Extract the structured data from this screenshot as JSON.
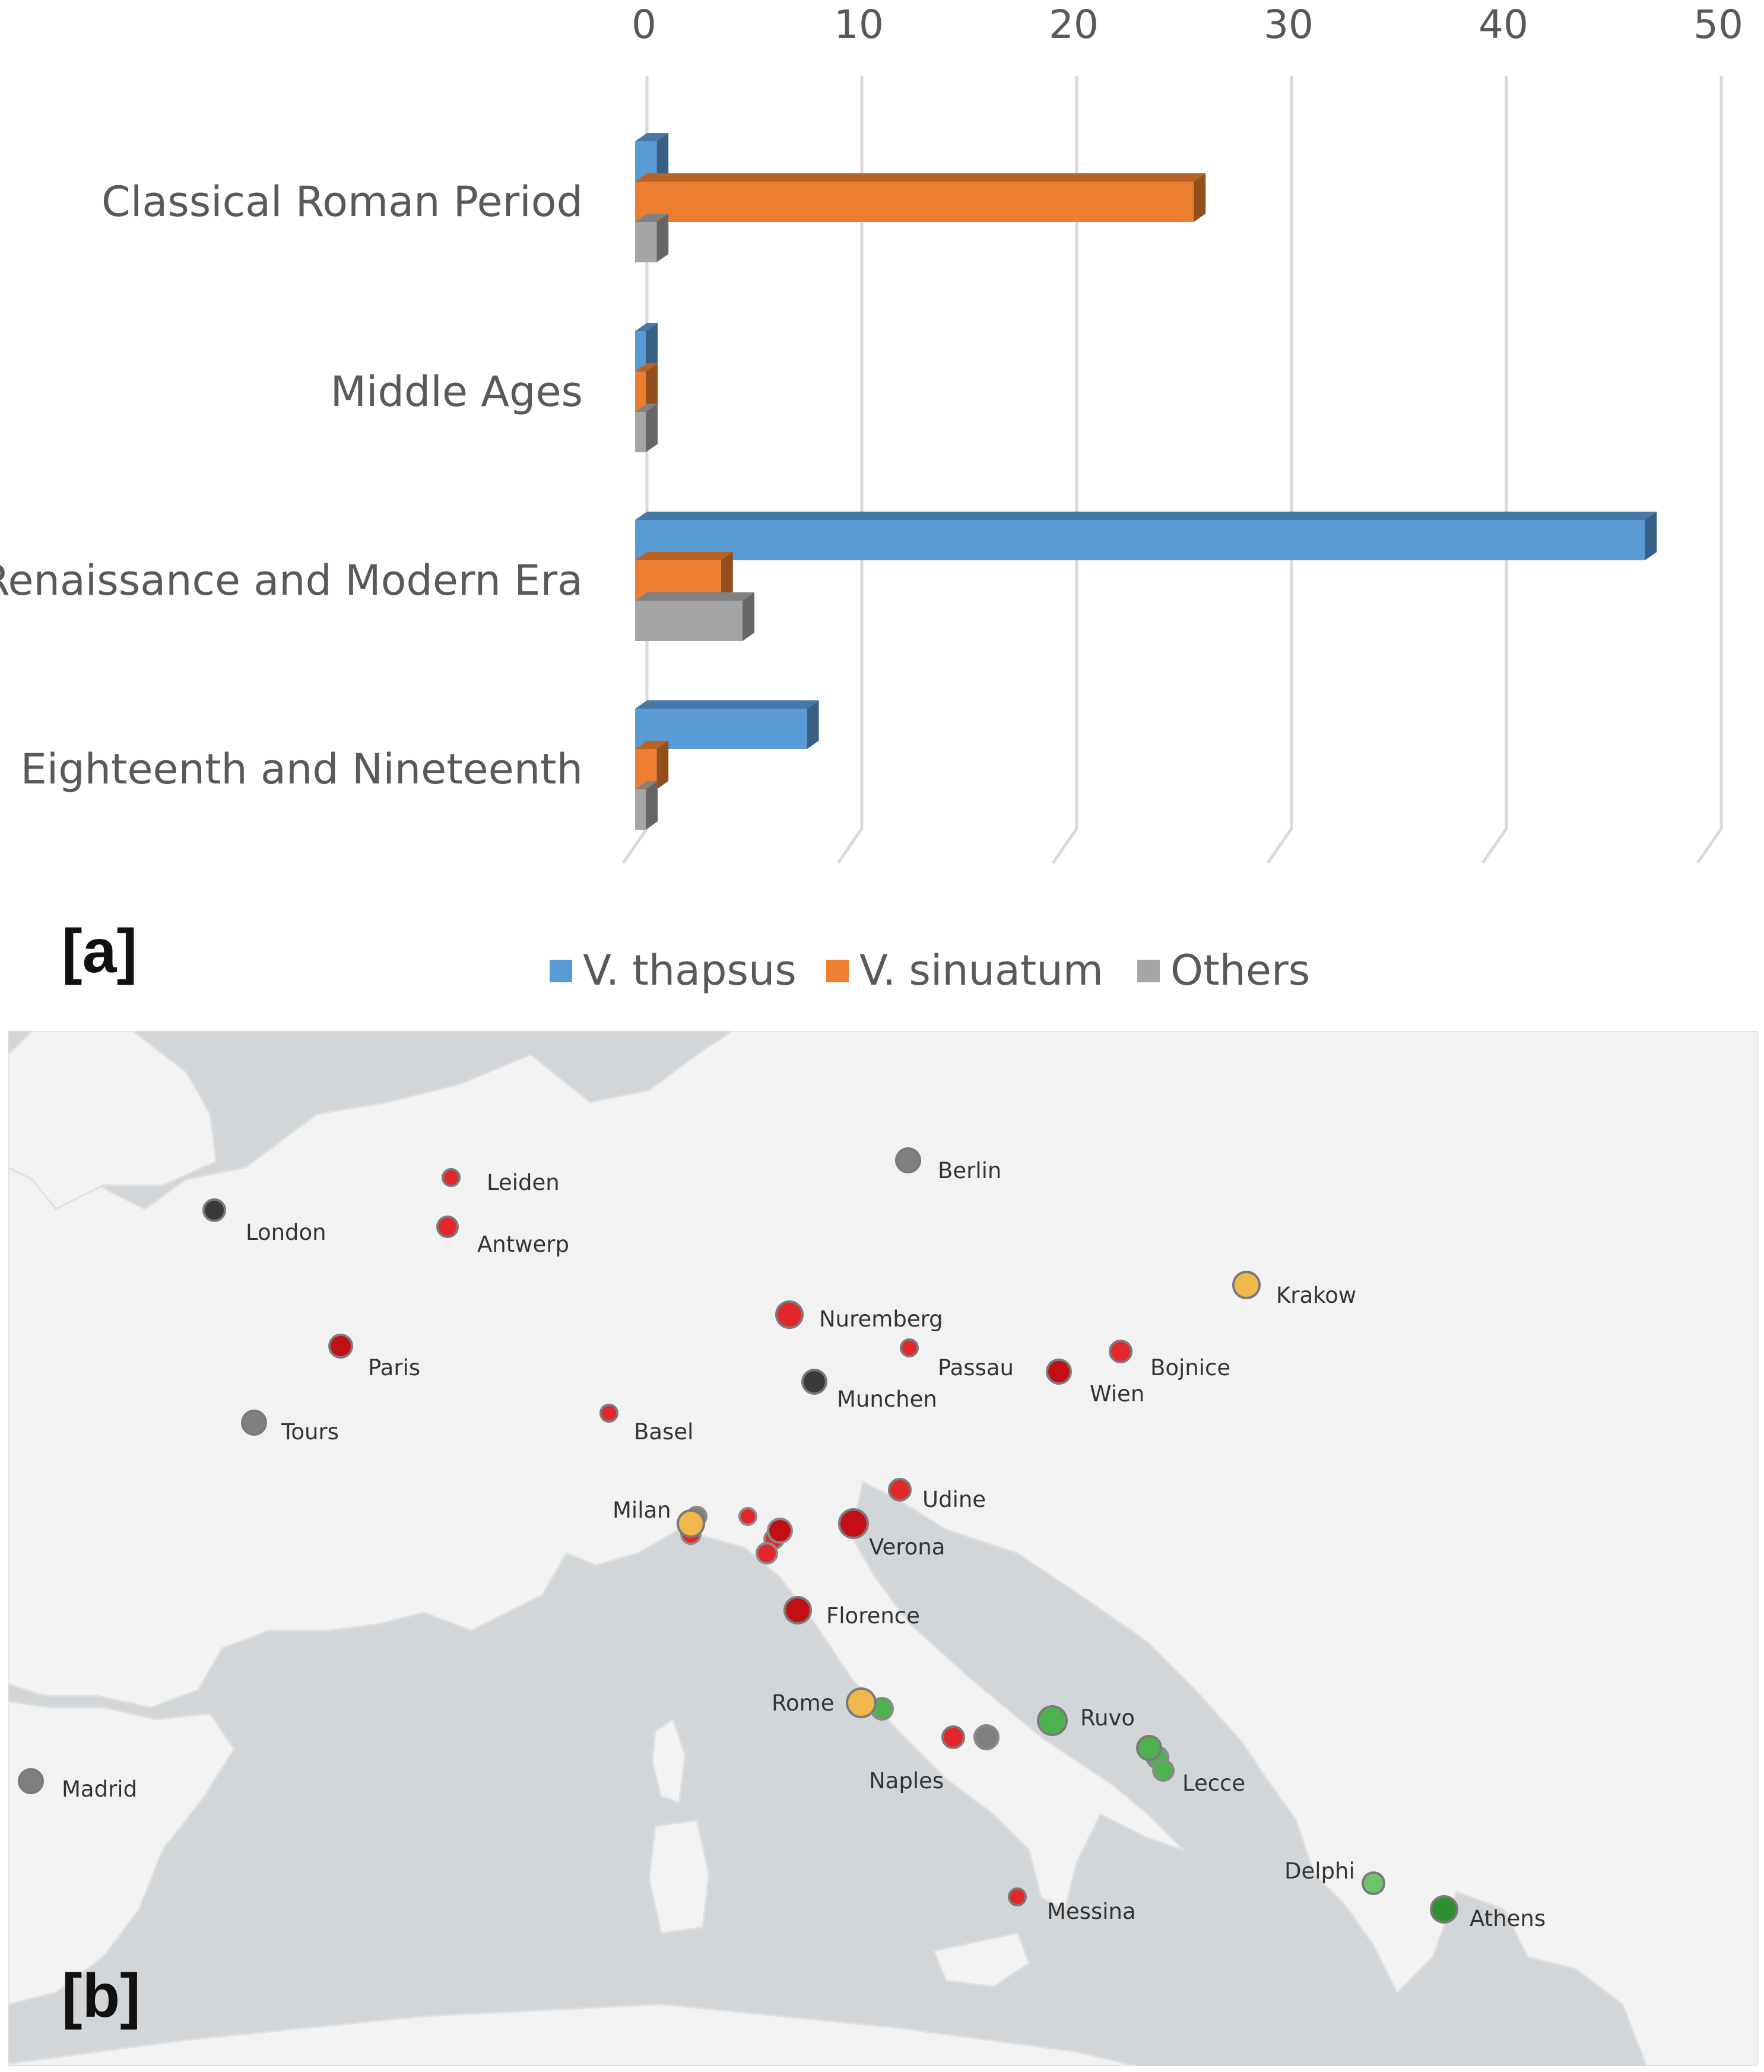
{
  "chart_data": {
    "type": "bar",
    "orientation": "horizontal",
    "style": "3d",
    "categories": [
      "Classical Roman Period",
      "Middle Ages",
      "Renaissance and Modern Era",
      "Eighteenth and Nineteenth"
    ],
    "series": [
      {
        "name": "V. thapsus",
        "color": "#5b9bd5",
        "values": [
          1,
          0,
          47,
          8
        ]
      },
      {
        "name": "V. sinuatum",
        "color": "#ed7d31",
        "values": [
          26,
          0,
          4,
          1
        ]
      },
      {
        "name": "Others",
        "color": "#a5a5a5",
        "values": [
          1,
          0,
          5,
          0
        ]
      }
    ],
    "xlim": [
      0,
      50
    ],
    "x_ticks": [
      "0",
      "10",
      "20",
      "30",
      "40",
      "50"
    ],
    "axis_position": "top",
    "grid": true,
    "legend_placement": "bottom",
    "panel_label": "[a]"
  },
  "map": {
    "panel_label": "[b]",
    "colors": {
      "red": "#e3262a",
      "dark_red": "#c10f15",
      "grey": "#7f7f7f",
      "dark_grey": "#3a3a3a",
      "yellow": "#f2b74a",
      "green": "#4fb04f",
      "dark_green": "#2f8f33",
      "light_green": "#6dc46a"
    },
    "places": [
      {
        "name": "Leiden",
        "color": "red"
      },
      {
        "name": "London",
        "color": "dark_grey"
      },
      {
        "name": "Antwerp",
        "color": "red"
      },
      {
        "name": "Berlin",
        "color": "grey"
      },
      {
        "name": "Krakow",
        "color": "yellow"
      },
      {
        "name": "Nuremberg",
        "color": "red"
      },
      {
        "name": "Paris",
        "color": "dark_red"
      },
      {
        "name": "Passau",
        "color": "red"
      },
      {
        "name": "Bojnice",
        "color": "red"
      },
      {
        "name": "Munchen",
        "color": "dark_grey"
      },
      {
        "name": "Wien",
        "color": "dark_red"
      },
      {
        "name": "Tours",
        "color": "grey"
      },
      {
        "name": "Basel",
        "color": "red"
      },
      {
        "name": "Udine",
        "color": "red"
      },
      {
        "name": "Milan",
        "color": "yellow"
      },
      {
        "name": "Verona",
        "color": "dark_red"
      },
      {
        "name": "Florence",
        "color": "dark_red"
      },
      {
        "name": "Rome",
        "color": "yellow"
      },
      {
        "name": "Ruvo",
        "color": "green"
      },
      {
        "name": "Naples",
        "color": "red"
      },
      {
        "name": "Lecce",
        "color": "green"
      },
      {
        "name": "Madrid",
        "color": "grey"
      },
      {
        "name": "Delphi",
        "color": "light_green"
      },
      {
        "name": "Athens",
        "color": "dark_green"
      },
      {
        "name": "Messina",
        "color": "red"
      }
    ]
  }
}
